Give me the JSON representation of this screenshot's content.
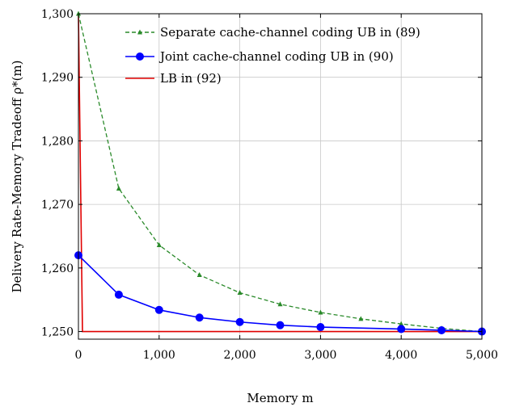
{
  "chart_data": {
    "type": "line",
    "xlabel": "Memory m",
    "ylabel": "Delivery Rate-Memory Tradeoff ρ*(m)",
    "xlim": [
      0,
      5000
    ],
    "ylim": [
      1248.8,
      1300
    ],
    "xticks": [
      0,
      1000,
      2000,
      3000,
      4000,
      5000
    ],
    "xtick_labels": [
      "0",
      "1,000",
      "2,000",
      "3,000",
      "4,000",
      "5,000"
    ],
    "yticks": [
      1250,
      1260,
      1270,
      1280,
      1290,
      1300
    ],
    "ytick_labels": [
      "1,250",
      "1,260",
      "1,270",
      "1,280",
      "1,290",
      "1,300"
    ],
    "grid": true,
    "legend_position": "top-right",
    "series": [
      {
        "name": "Separate cache-channel coding UB in (89)",
        "color": "#2a8a2a",
        "style": "dashed",
        "marker": "triangle",
        "x": [
          0,
          500,
          1000,
          1500,
          2000,
          2500,
          3000,
          3500,
          4000,
          4500,
          5000
        ],
        "y": [
          1300,
          1272.5,
          1263.6,
          1258.9,
          1256.1,
          1254.3,
          1253.0,
          1252.0,
          1251.2,
          1250.5,
          1250.0
        ]
      },
      {
        "name": "Joint cache-channel coding UB in (90)",
        "color": "#0000ff",
        "style": "solid",
        "marker": "circle",
        "x": [
          0,
          500,
          1000,
          1500,
          2000,
          2500,
          3000,
          4000,
          4500,
          5000
        ],
        "y": [
          1262.0,
          1255.8,
          1253.4,
          1252.2,
          1251.5,
          1251.0,
          1250.7,
          1250.4,
          1250.2,
          1250.0
        ]
      },
      {
        "name": "LB in (92)",
        "color": "#e00000",
        "style": "solid",
        "marker": "none",
        "x": [
          0,
          50,
          5000
        ],
        "y": [
          1300,
          1250,
          1250
        ]
      }
    ]
  }
}
